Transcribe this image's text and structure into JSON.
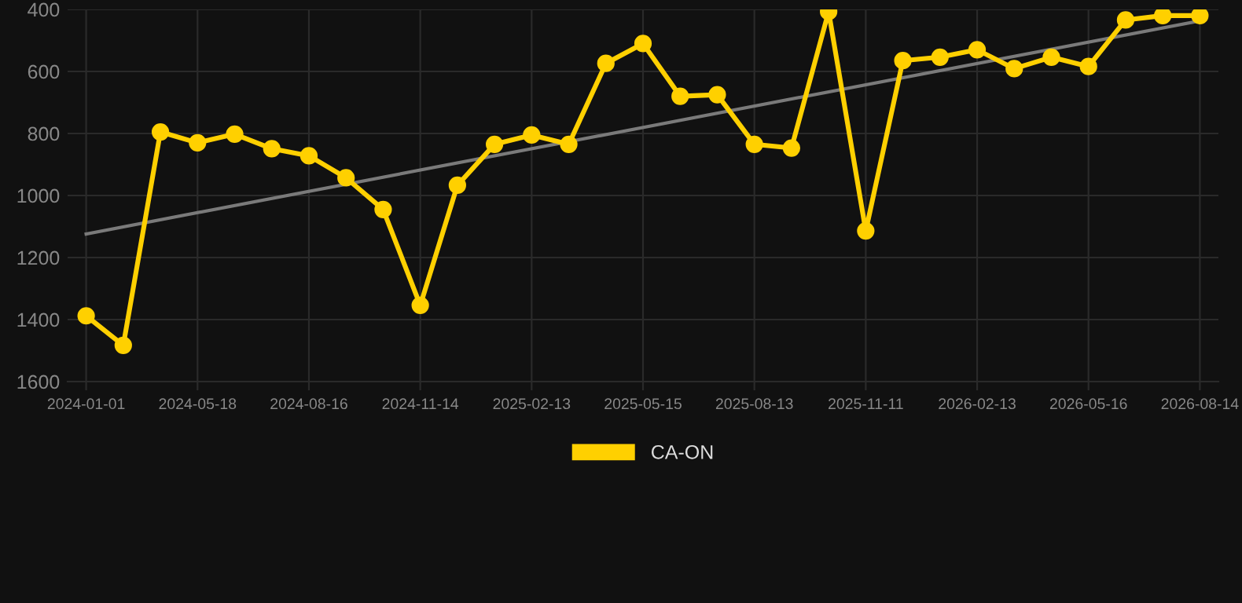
{
  "chart_data": {
    "type": "line",
    "categories": [
      "2024-01-01",
      null,
      null,
      "2024-05-18",
      null,
      null,
      "2024-08-16",
      null,
      null,
      "2024-11-14",
      null,
      null,
      "2025-02-13",
      null,
      null,
      "2025-05-15",
      null,
      null,
      "2025-08-13",
      null,
      null,
      "2025-11-11",
      null,
      null,
      "2026-02-13",
      null,
      null,
      "2026-05-16",
      null,
      null,
      "2026-08-14"
    ],
    "series": [
      {
        "name": "CA-ON",
        "color": "#ffd000",
        "marker": "circle",
        "values": [
          1388,
          1483,
          795,
          830,
          802,
          849,
          872,
          943,
          1045,
          1354,
          967,
          835,
          805,
          835,
          574,
          510,
          680,
          675,
          835,
          847,
          407,
          1114,
          565,
          554,
          530,
          591,
          554,
          584,
          434,
          420,
          420
        ]
      },
      {
        "color": "#7a7a7a",
        "marker": "none",
        "values": [
          1124,
          null,
          null,
          null,
          null,
          null,
          null,
          null,
          null,
          null,
          null,
          null,
          null,
          null,
          null,
          null,
          null,
          null,
          null,
          null,
          null,
          null,
          null,
          null,
          null,
          null,
          null,
          null,
          null,
          null,
          437
        ]
      }
    ],
    "ylim": [
      1600,
      400
    ],
    "yticks": [
      400,
      600,
      800,
      1000,
      1200,
      1400,
      1600
    ],
    "grid": true,
    "legend": "bottom"
  }
}
